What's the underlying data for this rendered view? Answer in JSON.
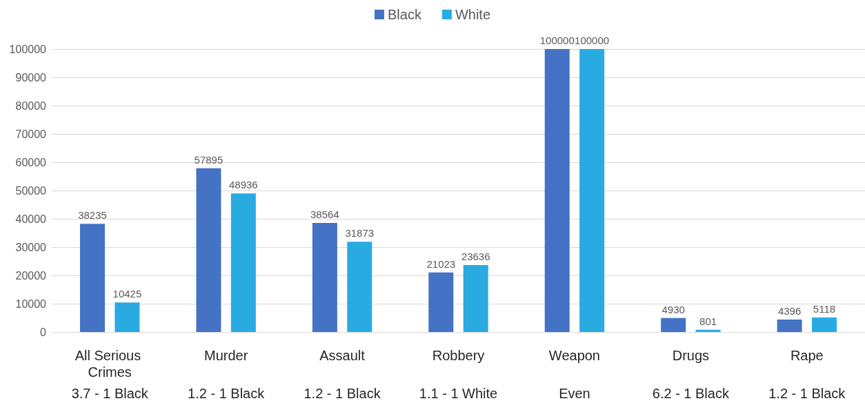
{
  "chart_data": {
    "type": "bar",
    "categories": [
      "All Serious Crimes",
      "Murder",
      "Assault",
      "Robbery",
      "Weapon",
      "Drugs",
      "Rape"
    ],
    "series": [
      {
        "name": "Black",
        "color": "#4472c4",
        "values": [
          38235,
          57895,
          38564,
          21023,
          100000,
          4930,
          4396
        ]
      },
      {
        "name": "White",
        "color": "#29abe2",
        "values": [
          10425,
          48936,
          31873,
          23636,
          100000,
          801,
          5118
        ]
      }
    ],
    "annotations": [
      "3.7 - 1 Black",
      "1.2 - 1 Black",
      "1.2 - 1 Black",
      "1.1 - 1 White",
      "Even",
      "6.2 - 1 Black",
      "1.2 - 1 Black"
    ],
    "ylim": [
      0,
      100000
    ],
    "yticks": [
      0,
      10000,
      20000,
      30000,
      40000,
      50000,
      60000,
      70000,
      80000,
      90000,
      100000
    ],
    "grid": "y",
    "legend": "top",
    "data_labels": true
  }
}
